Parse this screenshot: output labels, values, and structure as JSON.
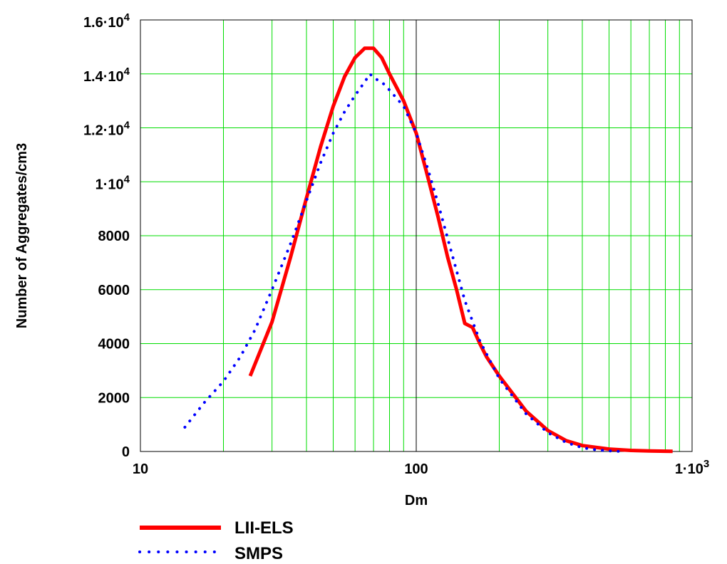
{
  "chart_data": {
    "type": "line",
    "xlabel": "Dm",
    "ylabel": "Number of Aggregates/cm3",
    "x_scale": "log",
    "xlim": [
      10,
      1000
    ],
    "ylim": [
      0,
      16000
    ],
    "grid": true,
    "legend_placement": "bottom-left",
    "x_ticks": [
      {
        "value": 10,
        "label": "10"
      },
      {
        "value": 100,
        "label": "100"
      },
      {
        "value": 1000,
        "label": "1·10",
        "exp": "3"
      }
    ],
    "y_ticks": [
      {
        "value": 0,
        "label": "0"
      },
      {
        "value": 2000,
        "label": "2000"
      },
      {
        "value": 4000,
        "label": "4000"
      },
      {
        "value": 6000,
        "label": "6000"
      },
      {
        "value": 8000,
        "label": "8000"
      },
      {
        "value": 10000,
        "label": "1·10",
        "exp": "4"
      },
      {
        "value": 12000,
        "label": "1.2·10",
        "exp": "4"
      },
      {
        "value": 14000,
        "label": "1.4·10",
        "exp": "4"
      },
      {
        "value": 16000,
        "label": "1.6·10",
        "exp": "4"
      }
    ],
    "series": [
      {
        "name": "LII-ELS",
        "color": "#ff0000",
        "style": "solid",
        "x": [
          25,
          30,
          35,
          40,
          45,
          50,
          55,
          60,
          65,
          70,
          75,
          80,
          90,
          100,
          110,
          120,
          130,
          140,
          150,
          160,
          170,
          180,
          200,
          250,
          300,
          350,
          400,
          500,
          600,
          700,
          800,
          850
        ],
        "y": [
          2800,
          4800,
          7200,
          9400,
          11300,
          12800,
          13900,
          14600,
          14950,
          14950,
          14600,
          14000,
          13000,
          11800,
          10200,
          8700,
          7200,
          6000,
          4750,
          4600,
          4000,
          3500,
          2800,
          1500,
          780,
          400,
          220,
          90,
          40,
          20,
          10,
          5
        ]
      },
      {
        "name": "SMPS",
        "color": "#0000ff",
        "style": "dotted",
        "x": [
          14.5,
          17,
          20,
          23,
          26,
          30,
          35,
          40,
          45,
          50,
          55,
          60,
          65,
          68,
          70,
          75,
          80,
          90,
          100,
          110,
          120,
          130,
          140,
          150,
          170,
          200,
          250,
          300,
          350,
          400,
          450,
          500,
          560
        ],
        "y": [
          900,
          1800,
          2600,
          3500,
          4500,
          6000,
          7700,
          9300,
          10700,
          11800,
          12600,
          13200,
          13700,
          14000,
          13850,
          13700,
          13400,
          12800,
          11800,
          10500,
          9200,
          7900,
          6700,
          5600,
          4100,
          2700,
          1400,
          700,
          330,
          140,
          60,
          20,
          0
        ]
      }
    ]
  }
}
